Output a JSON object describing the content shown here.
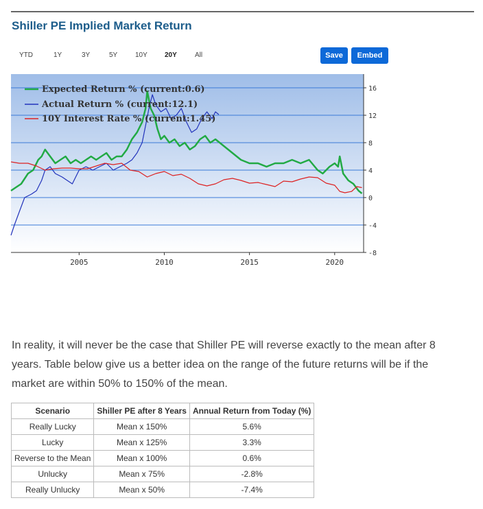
{
  "header": {
    "title": "Shiller PE Implied Market Return"
  },
  "ranges": [
    "YTD",
    "1Y",
    "3Y",
    "5Y",
    "10Y",
    "20Y",
    "All"
  ],
  "active_range": "20Y",
  "buttons": {
    "save": "Save",
    "embed": "Embed"
  },
  "colors": {
    "expected": "#22aa44",
    "actual": "#2233bb",
    "interest": "#dd2222",
    "title": "#1d5d8b",
    "button": "#0d69d8"
  },
  "chart_data": {
    "type": "line",
    "title": "",
    "xlabel": "",
    "ylabel": "",
    "xlim": [
      2001.0,
      2021.7
    ],
    "ylim": [
      -8,
      18
    ],
    "yticks": [
      "16",
      "12",
      "8",
      "4",
      "0",
      "-4",
      "-8"
    ],
    "xticks": [
      "2005",
      "2010",
      "2015",
      "2020"
    ],
    "legend_position": "top-left",
    "series": [
      {
        "name": "Expected Return % (current:0.6)",
        "color": "#22aa44",
        "x": [
          2001.0,
          2001.3,
          2001.6,
          2002.0,
          2002.3,
          2002.6,
          2002.8,
          2003.0,
          2003.3,
          2003.6,
          2003.9,
          2004.2,
          2004.5,
          2004.8,
          2005.1,
          2005.4,
          2005.7,
          2006.0,
          2006.3,
          2006.6,
          2006.9,
          2007.2,
          2007.5,
          2007.8,
          2008.1,
          2008.4,
          2008.7,
          2008.9,
          2009.0,
          2009.2,
          2009.4,
          2009.6,
          2009.8,
          2010.0,
          2010.3,
          2010.6,
          2010.9,
          2011.2,
          2011.5,
          2011.8,
          2012.1,
          2012.4,
          2012.7,
          2013.0,
          2013.5,
          2014.0,
          2014.5,
          2015.0,
          2015.5,
          2016.0,
          2016.5,
          2017.0,
          2017.5,
          2018.0,
          2018.5,
          2019.0,
          2019.3,
          2019.7,
          2020.0,
          2020.2,
          2020.3,
          2020.5,
          2020.8,
          2021.1,
          2021.4,
          2021.6
        ],
        "values": [
          1.0,
          1.5,
          2.0,
          3.5,
          4.0,
          5.5,
          6.0,
          7.0,
          6.0,
          5.0,
          5.5,
          6.0,
          5.0,
          5.5,
          5.0,
          5.5,
          6.0,
          5.5,
          6.0,
          6.5,
          5.5,
          6.0,
          6.0,
          7.0,
          8.5,
          9.5,
          11.0,
          13.0,
          15.5,
          13.0,
          12.0,
          10.0,
          8.5,
          9.0,
          8.0,
          8.5,
          7.5,
          8.0,
          7.0,
          7.5,
          8.5,
          9.0,
          8.0,
          8.5,
          7.5,
          6.5,
          5.5,
          5.0,
          5.0,
          4.5,
          5.0,
          5.0,
          5.5,
          5.0,
          5.5,
          4.0,
          3.5,
          4.5,
          5.0,
          4.5,
          6.0,
          3.5,
          2.5,
          2.0,
          1.0,
          0.6
        ]
      },
      {
        "name": "Actual Return % (current:12.1)",
        "color": "#2233bb",
        "x": [
          2001.0,
          2001.2,
          2001.5,
          2001.8,
          2002.2,
          2002.5,
          2002.8,
          2003.0,
          2003.3,
          2003.6,
          2004.0,
          2004.3,
          2004.6,
          2005.0,
          2005.4,
          2005.8,
          2006.2,
          2006.6,
          2007.0,
          2007.4,
          2007.8,
          2008.1,
          2008.4,
          2008.7,
          2008.9,
          2009.1,
          2009.3,
          2009.5,
          2009.8,
          2010.1,
          2010.4,
          2010.7,
          2011.0,
          2011.3,
          2011.6,
          2011.9,
          2012.2,
          2012.5,
          2012.8,
          2013.0,
          2013.2
        ],
        "values": [
          -5.5,
          -4.0,
          -2.0,
          0.0,
          0.5,
          1.0,
          2.5,
          4.0,
          4.5,
          3.5,
          3.0,
          2.5,
          2.0,
          4.0,
          4.5,
          4.0,
          4.5,
          5.0,
          4.0,
          4.5,
          5.0,
          5.5,
          6.5,
          8.0,
          10.5,
          13.0,
          15.0,
          13.5,
          12.5,
          13.0,
          11.5,
          12.0,
          13.0,
          11.0,
          9.5,
          10.0,
          11.5,
          12.5,
          11.5,
          12.5,
          12.1
        ]
      },
      {
        "name": "10Y Interest Rate % (current:1.45)",
        "color": "#dd2222",
        "x": [
          2001.0,
          2001.5,
          2002.0,
          2002.5,
          2003.0,
          2003.5,
          2004.0,
          2004.5,
          2005.0,
          2005.5,
          2006.0,
          2006.5,
          2007.0,
          2007.5,
          2008.0,
          2008.5,
          2009.0,
          2009.5,
          2010.0,
          2010.5,
          2011.0,
          2011.5,
          2012.0,
          2012.5,
          2013.0,
          2013.5,
          2014.0,
          2014.5,
          2015.0,
          2015.5,
          2016.0,
          2016.5,
          2017.0,
          2017.5,
          2018.0,
          2018.5,
          2019.0,
          2019.5,
          2020.0,
          2020.3,
          2020.6,
          2021.0,
          2021.3,
          2021.6
        ],
        "values": [
          5.2,
          5.0,
          5.0,
          4.6,
          4.0,
          4.2,
          4.3,
          4.3,
          4.2,
          4.2,
          4.6,
          5.0,
          4.8,
          5.0,
          4.0,
          3.8,
          3.0,
          3.5,
          3.8,
          3.2,
          3.4,
          2.8,
          2.0,
          1.7,
          2.0,
          2.6,
          2.8,
          2.5,
          2.1,
          2.2,
          1.9,
          1.6,
          2.4,
          2.3,
          2.7,
          3.0,
          2.9,
          2.1,
          1.8,
          0.9,
          0.7,
          0.9,
          1.6,
          1.45
        ]
      }
    ]
  },
  "paragraph": "In reality, it will never be the case that Shiller PE will reverse exactly to the mean after 8 years. Table below give us a better idea on the range of the future returns will be if the market are within 50% to 150% of the mean.",
  "table": {
    "headers": [
      "Scenario",
      "Shiller PE after 8 Years",
      "Annual Return from Today (%)"
    ],
    "rows": [
      [
        "Really Lucky",
        "Mean x 150%",
        "5.6%"
      ],
      [
        "Lucky",
        "Mean x 125%",
        "3.3%"
      ],
      [
        "Reverse to the Mean",
        "Mean x 100%",
        "0.6%"
      ],
      [
        "Unlucky",
        "Mean x 75%",
        "-2.8%"
      ],
      [
        "Really Unlucky",
        "Mean x 50%",
        "-7.4%"
      ]
    ]
  }
}
